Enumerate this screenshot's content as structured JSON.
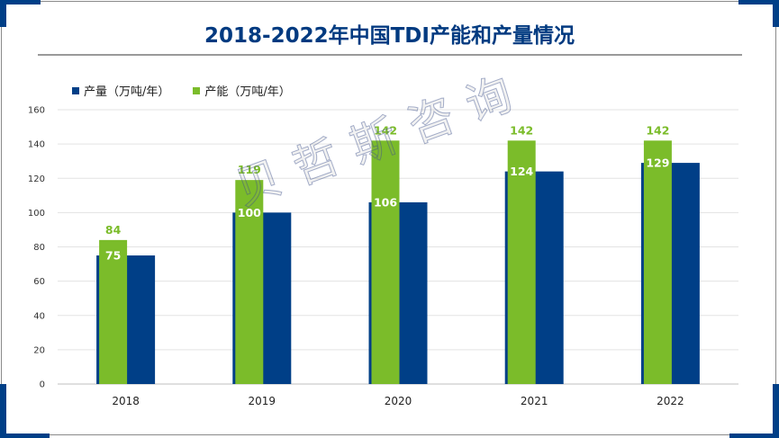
{
  "title": "2018-2022年中国TDI产能和产量情况",
  "watermark": "贝哲斯咨询",
  "colors": {
    "production": "#003f87",
    "capacity": "#7bbc2a",
    "frame_corner": "#003f87"
  },
  "chart_data": {
    "type": "bar",
    "title": "2018-2022年中国TDI产能和产量情况",
    "categories": [
      "2018",
      "2019",
      "2020",
      "2021",
      "2022"
    ],
    "series": [
      {
        "name": "产量（万吨/年）",
        "values": [
          75,
          100,
          106,
          124,
          129
        ]
      },
      {
        "name": "产能（万吨/年）",
        "values": [
          84,
          119,
          142,
          142,
          142
        ]
      }
    ],
    "ylim": [
      0,
      160
    ],
    "yticks": [
      0,
      20,
      40,
      60,
      80,
      100,
      120,
      140,
      160
    ],
    "grid": true,
    "legend_position": "top-left",
    "xlabel": "",
    "ylabel": ""
  }
}
